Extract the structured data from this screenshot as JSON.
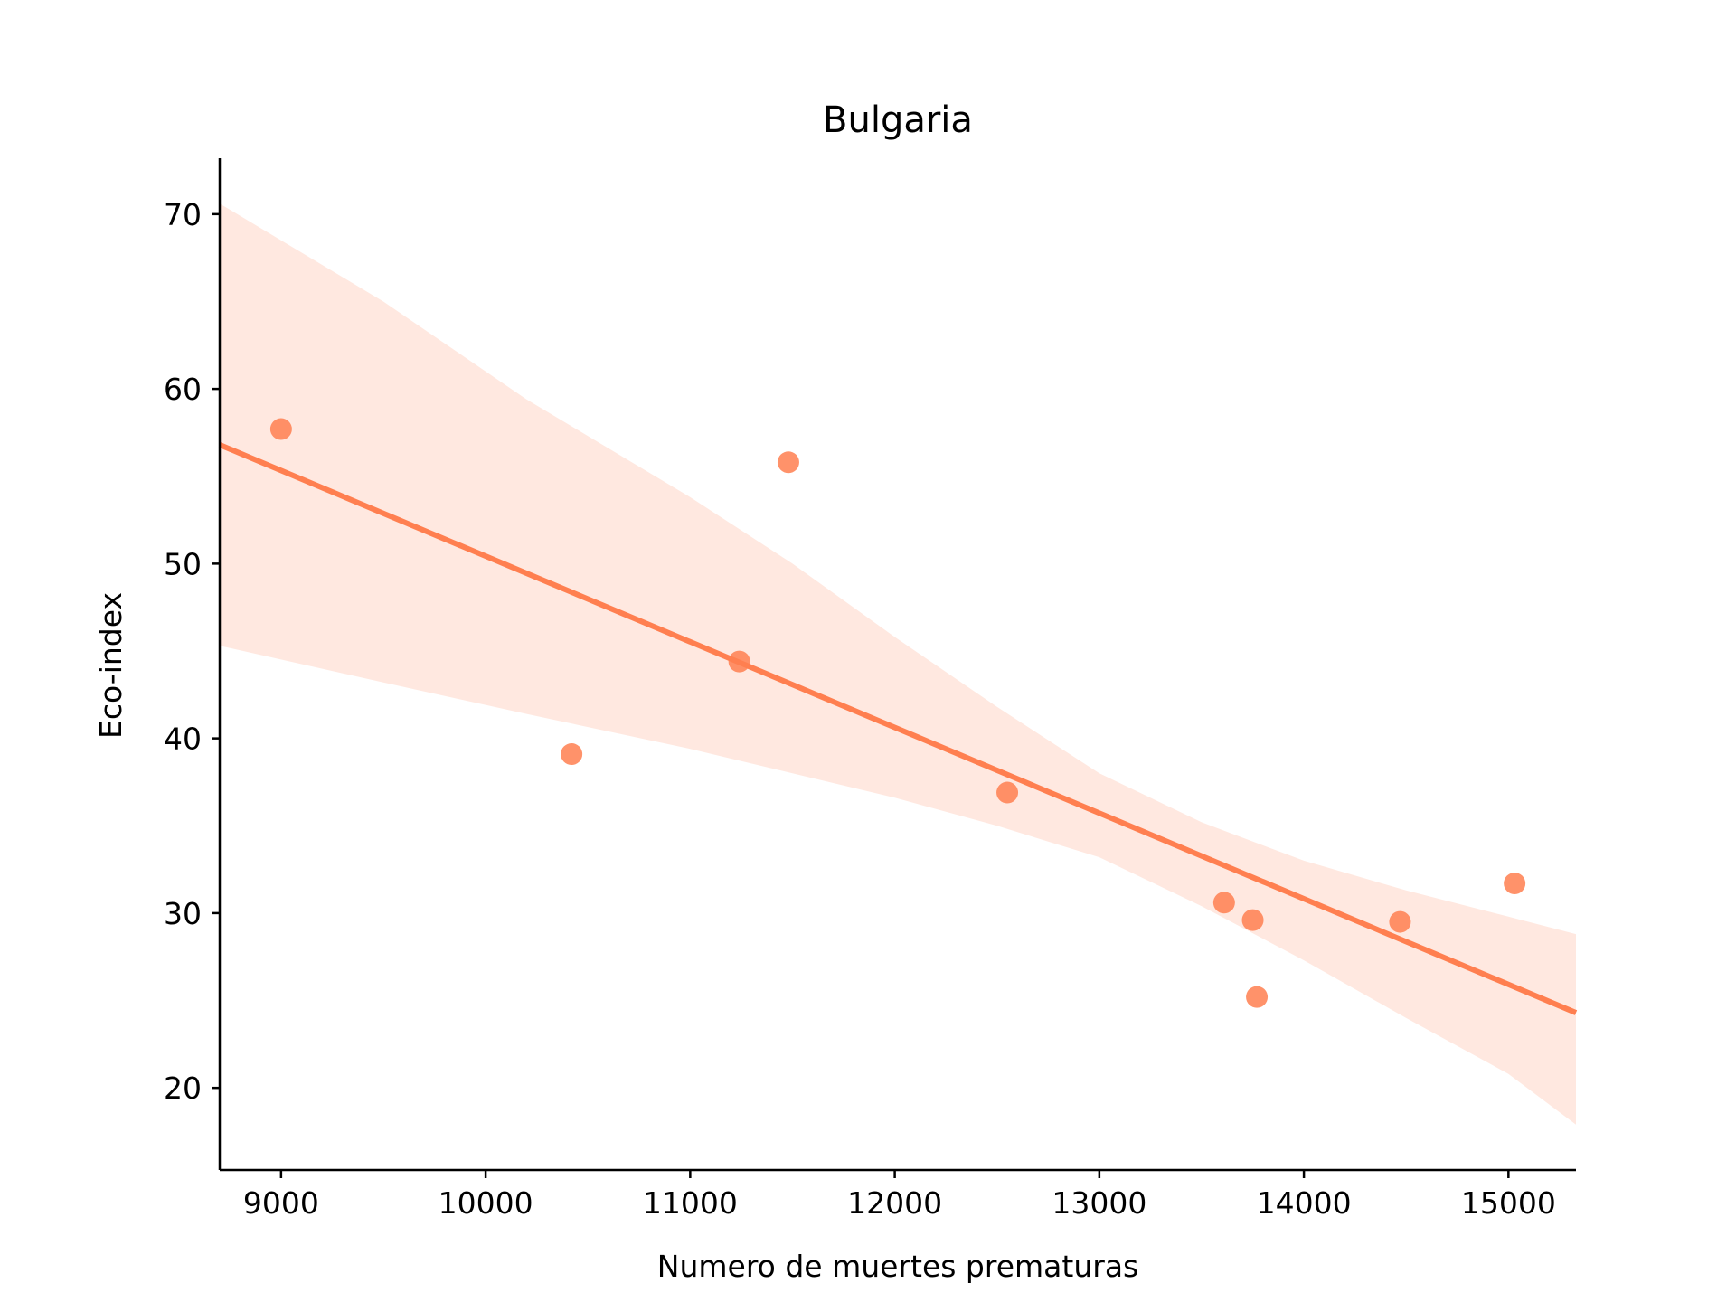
{
  "chart_data": {
    "type": "scatter",
    "title": "Bulgaria",
    "xlabel": "Numero de muertes prematuras",
    "ylabel": "Eco-index",
    "xlim": [
      8700,
      15330
    ],
    "ylim": [
      15.3,
      73.2
    ],
    "x_ticks": [
      9000,
      10000,
      11000,
      12000,
      13000,
      14000,
      15000
    ],
    "y_ticks": [
      20,
      30,
      40,
      50,
      60,
      70
    ],
    "x_tick_labels": [
      "9000",
      "10000",
      "11000",
      "12000",
      "13000",
      "14000",
      "15000"
    ],
    "y_tick_labels": [
      "20",
      "30",
      "40",
      "50",
      "60",
      "70"
    ],
    "grid": false,
    "colors": {
      "points": "#ff7f50",
      "line": "#ff7f50",
      "band": "#ffd9cc"
    },
    "points": [
      {
        "x": 9000,
        "y": 57.7
      },
      {
        "x": 10420,
        "y": 39.1
      },
      {
        "x": 11240,
        "y": 44.4
      },
      {
        "x": 11480,
        "y": 55.8
      },
      {
        "x": 12550,
        "y": 36.9
      },
      {
        "x": 13610,
        "y": 30.6
      },
      {
        "x": 13750,
        "y": 29.6
      },
      {
        "x": 13770,
        "y": 25.2
      },
      {
        "x": 14470,
        "y": 29.5
      },
      {
        "x": 15030,
        "y": 31.7
      }
    ],
    "regression_line": [
      {
        "x": 8700,
        "y": 56.8
      },
      {
        "x": 15330,
        "y": 24.3
      }
    ],
    "confidence_band": {
      "x": [
        8700,
        9500,
        10200,
        11000,
        11500,
        12000,
        12500,
        13000,
        13500,
        14000,
        14500,
        15000,
        15330
      ],
      "upper": [
        70.6,
        65.0,
        59.4,
        53.8,
        50.0,
        45.8,
        41.8,
        38.0,
        35.2,
        33.0,
        31.3,
        29.8,
        28.8
      ],
      "lower": [
        45.3,
        43.2,
        41.4,
        39.4,
        38.0,
        36.6,
        35.0,
        33.2,
        30.4,
        27.3,
        24.0,
        20.8,
        17.9
      ]
    }
  }
}
